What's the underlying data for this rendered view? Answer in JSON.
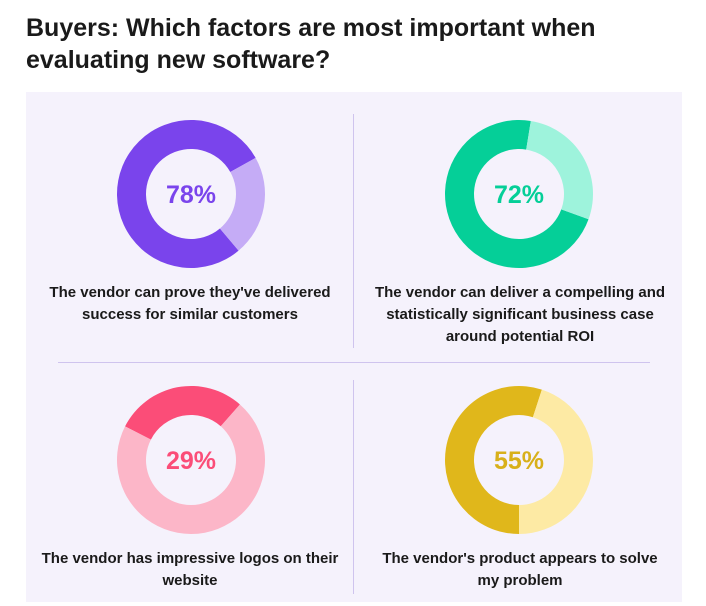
{
  "title": "Buyers: Which factors are most important when evaluating new software?",
  "chart_data": [
    {
      "type": "pie",
      "slices": [
        {
          "value": 78
        },
        {
          "value": 22
        }
      ],
      "value_label": "78%",
      "caption": "The vendor can prove they've delivered success for similar customers",
      "colors": {
        "main": "#7a44ec",
        "rest": "#c5acf6",
        "text": "#7a44ec"
      }
    },
    {
      "type": "pie",
      "slices": [
        {
          "value": 72
        },
        {
          "value": 28
        }
      ],
      "value_label": "72%",
      "caption": "The vendor can deliver a compelling and statistically significant business case around potential ROI",
      "colors": {
        "main": "#05cf98",
        "rest": "#9ef3dc",
        "text": "#05cf98"
      }
    },
    {
      "type": "pie",
      "slices": [
        {
          "value": 29
        },
        {
          "value": 71
        }
      ],
      "value_label": "29%",
      "caption": "The vendor has impressive logos on their website",
      "colors": {
        "main": "#fb4d78",
        "rest": "#fcb6c8",
        "text": "#fb4d78"
      }
    },
    {
      "type": "pie",
      "slices": [
        {
          "value": 55
        },
        {
          "value": 45
        }
      ],
      "value_label": "55%",
      "caption": "The vendor's product appears to solve my problem",
      "colors": {
        "main": "#e0b71b",
        "rest": "#fdeaa4",
        "text": "#d8b01a"
      }
    }
  ]
}
